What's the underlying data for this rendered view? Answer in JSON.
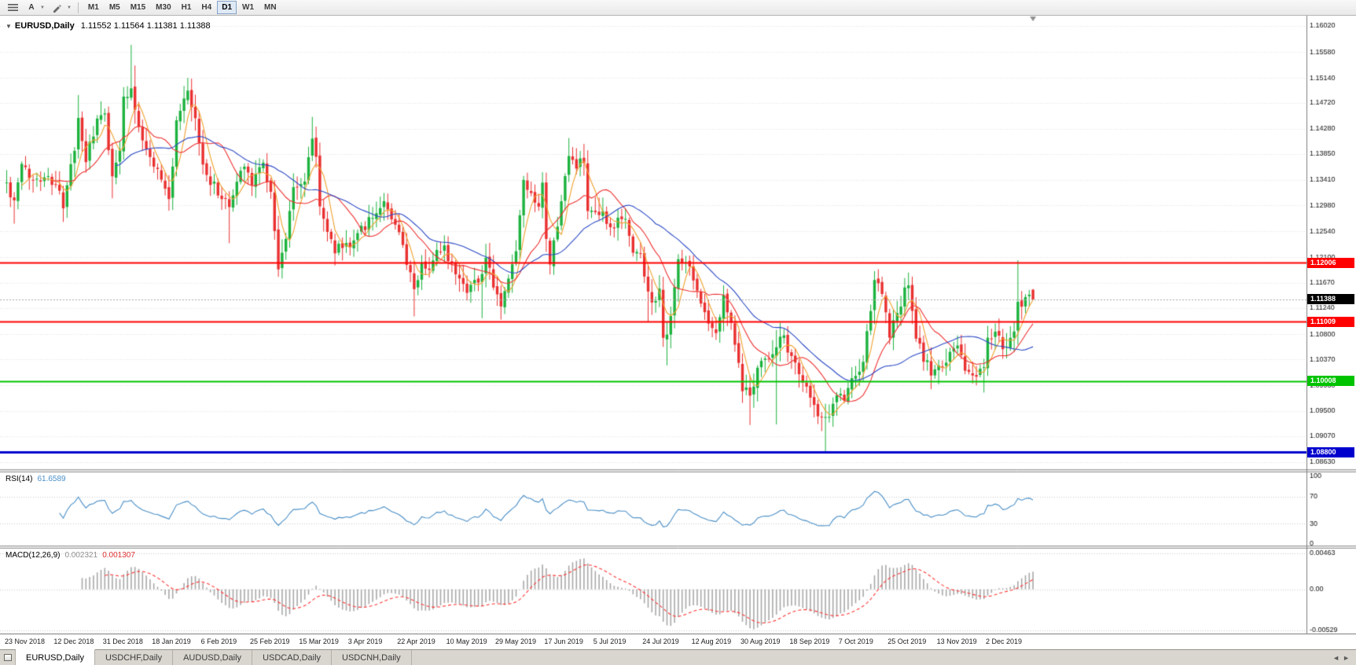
{
  "toolbar": {
    "cursor_button": "A",
    "timeframes": [
      {
        "label": "M1",
        "active": false
      },
      {
        "label": "M5",
        "active": false
      },
      {
        "label": "M15",
        "active": false
      },
      {
        "label": "M30",
        "active": false
      },
      {
        "label": "H1",
        "active": false
      },
      {
        "label": "H4",
        "active": false
      },
      {
        "label": "D1",
        "active": true
      },
      {
        "label": "W1",
        "active": false
      },
      {
        "label": "MN",
        "active": false
      }
    ]
  },
  "chart_header": {
    "collapse_arrow": "▼",
    "symbol": "EURUSD,Daily",
    "ohlc": "1.11552 1.11564 1.11381 1.11388"
  },
  "price_axis": [
    "1.16020",
    "1.15580",
    "1.15140",
    "1.14720",
    "1.14280",
    "1.13850",
    "1.13410",
    "1.12980",
    "1.12540",
    "1.12100",
    "1.11670",
    "1.11240",
    "1.10800",
    "1.10370",
    "1.09930",
    "1.09500",
    "1.09070",
    "1.08630"
  ],
  "time_axis": [
    "23 Nov 2018",
    "12 Dec 2018",
    "31 Dec 2018",
    "18 Jan 2019",
    "6 Feb 2019",
    "25 Feb 2019",
    "15 Mar 2019",
    "3 Apr 2019",
    "22 Apr 2019",
    "10 May 2019",
    "29 May 2019",
    "17 Jun 2019",
    "5 Jul 2019",
    "24 Jul 2019",
    "12 Aug 2019",
    "30 Aug 2019",
    "18 Sep 2019",
    "7 Oct 2019",
    "25 Oct 2019",
    "13 Nov 2019",
    "2 Dec 2019"
  ],
  "rsi_panel": {
    "name": "RSI(14)",
    "value": "61.6589",
    "axis": [
      "100",
      "70",
      "30",
      "0"
    ]
  },
  "macd_panel": {
    "name": "MACD(12,26,9)",
    "value_main": "0.002321",
    "value_signal": "0.001307",
    "axis": [
      "0.00463",
      "0.00",
      "-0.00529"
    ]
  },
  "tabs": [
    {
      "label": "EURUSD,Daily",
      "active": true
    },
    {
      "label": "USDCHF,Daily",
      "active": false
    },
    {
      "label": "AUDUSD,Daily",
      "active": false
    },
    {
      "label": "USDCAD,Daily",
      "active": false
    },
    {
      "label": "USDCNH,Daily",
      "active": false
    }
  ],
  "tab_scroll": {
    "left": "◄",
    "right": "►"
  },
  "chart_data": {
    "type": "candlestick",
    "symbol": "EURUSD",
    "timeframe": "Daily",
    "current_price": 1.11388,
    "bid_badge": "1.11388",
    "bid_badge_bg": "#000000",
    "last_ohlc": {
      "o": 1.11552,
      "h": 1.11564,
      "l": 1.11381,
      "c": 1.11388
    },
    "candle_count": 273,
    "up_color": "#1cb23e",
    "down_color": "#ea3030",
    "seed": 42,
    "noise": 0.0018,
    "gap_noise": 0.0006,
    "wick_min": 0.0004,
    "wick_rand": 0.002,
    "x_range": [
      "23 Nov 2018",
      "19 Dec 2019"
    ],
    "y_range": [
      1.0863,
      1.1602
    ],
    "close_anchors": [
      [
        0,
        1.1335
      ],
      [
        2,
        1.13
      ],
      [
        4,
        1.1365
      ],
      [
        7,
        1.134
      ],
      [
        10,
        1.135
      ],
      [
        13,
        1.133
      ],
      [
        15,
        1.13
      ],
      [
        18,
        1.139
      ],
      [
        19,
        1.1445
      ],
      [
        21,
        1.1375
      ],
      [
        24,
        1.144
      ],
      [
        26,
        1.145
      ],
      [
        28,
        1.1345
      ],
      [
        30,
        1.14
      ],
      [
        31,
        1.1475
      ],
      [
        33,
        1.15
      ],
      [
        34,
        1.1465
      ],
      [
        36,
        1.141
      ],
      [
        38,
        1.138
      ],
      [
        41,
        1.1345
      ],
      [
        43,
        1.1305
      ],
      [
        45,
        1.1435
      ],
      [
        48,
        1.1488
      ],
      [
        50,
        1.144
      ],
      [
        52,
        1.1364
      ],
      [
        55,
        1.133
      ],
      [
        59,
        1.1295
      ],
      [
        61,
        1.1338
      ],
      [
        63,
        1.137
      ],
      [
        65,
        1.134
      ],
      [
        68,
        1.137
      ],
      [
        70,
        1.132
      ],
      [
        72,
        1.1195
      ],
      [
        74,
        1.124
      ],
      [
        76,
        1.1328
      ],
      [
        79,
        1.134
      ],
      [
        81,
        1.1415
      ],
      [
        82,
        1.1378
      ],
      [
        83,
        1.1302
      ],
      [
        85,
        1.125
      ],
      [
        87,
        1.1224
      ],
      [
        89,
        1.123
      ],
      [
        91,
        1.1234
      ],
      [
        94,
        1.126
      ],
      [
        97,
        1.1274
      ],
      [
        99,
        1.13
      ],
      [
        101,
        1.1297
      ],
      [
        104,
        1.1245
      ],
      [
        108,
        1.1156
      ],
      [
        110,
        1.12
      ],
      [
        112,
        1.1194
      ],
      [
        114,
        1.1216
      ],
      [
        116,
        1.1223
      ],
      [
        118,
        1.12
      ],
      [
        120,
        1.118
      ],
      [
        122,
        1.1158
      ],
      [
        124,
        1.117
      ],
      [
        126,
        1.1182
      ],
      [
        127,
        1.1203
      ],
      [
        129,
        1.1165
      ],
      [
        131,
        1.113
      ],
      [
        133,
        1.117
      ],
      [
        135,
        1.1222
      ],
      [
        137,
        1.1334
      ],
      [
        139,
        1.131
      ],
      [
        141,
        1.129
      ],
      [
        142,
        1.1328
      ],
      [
        143,
        1.124
      ],
      [
        144,
        1.1193
      ],
      [
        146,
        1.127
      ],
      [
        149,
        1.138
      ],
      [
        151,
        1.1367
      ],
      [
        153,
        1.1373
      ],
      [
        154,
        1.1285
      ],
      [
        156,
        1.1278
      ],
      [
        158,
        1.128
      ],
      [
        160,
        1.1253
      ],
      [
        162,
        1.127
      ],
      [
        164,
        1.1276
      ],
      [
        166,
        1.122
      ],
      [
        168,
        1.1213
      ],
      [
        170,
        1.115
      ],
      [
        172,
        1.1128
      ],
      [
        173,
        1.1155
      ],
      [
        174,
        1.1076
      ],
      [
        175,
        1.1085
      ],
      [
        176,
        1.111
      ],
      [
        177,
        1.1159
      ],
      [
        178,
        1.12
      ],
      [
        180,
        1.1205
      ],
      [
        182,
        1.1171
      ],
      [
        184,
        1.114
      ],
      [
        186,
        1.11
      ],
      [
        188,
        1.1086
      ],
      [
        190,
        1.1145
      ],
      [
        192,
        1.11
      ],
      [
        194,
        1.104
      ],
      [
        195,
        1.099
      ],
      [
        197,
        1.0972
      ],
      [
        199,
        1.1028
      ],
      [
        201,
        1.1035
      ],
      [
        203,
        1.105
      ],
      [
        204,
        1.1063
      ],
      [
        206,
        1.1073
      ],
      [
        208,
        1.104
      ],
      [
        210,
        1.1017
      ],
      [
        212,
        1.099
      ],
      [
        215,
        1.0941
      ],
      [
        217,
        1.0932
      ],
      [
        219,
        1.0962
      ],
      [
        220,
        1.0979
      ],
      [
        222,
        1.097
      ],
      [
        224,
        1.1
      ],
      [
        227,
        1.103
      ],
      [
        230,
        1.1169
      ],
      [
        232,
        1.115
      ],
      [
        234,
        1.108
      ],
      [
        236,
        1.111
      ],
      [
        238,
        1.1152
      ],
      [
        239,
        1.116
      ],
      [
        241,
        1.1074
      ],
      [
        243,
        1.104
      ],
      [
        245,
        1.1018
      ],
      [
        248,
        1.1021
      ],
      [
        250,
        1.1052
      ],
      [
        252,
        1.1061
      ],
      [
        254,
        1.1021
      ],
      [
        256,
        1.101
      ],
      [
        259,
        1.1018
      ],
      [
        260,
        1.1078
      ],
      [
        262,
        1.108
      ],
      [
        264,
        1.106
      ],
      [
        266,
        1.1065
      ],
      [
        267,
        1.1088
      ],
      [
        268,
        1.113
      ],
      [
        269,
        1.1121
      ],
      [
        270,
        1.1145
      ],
      [
        271,
        1.1152
      ],
      [
        272,
        1.11388
      ]
    ],
    "wick_overrides": {
      "2": {
        "l": 1.1267
      },
      "15": {
        "l": 1.127
      },
      "19": {
        "h": 1.1485
      },
      "28": {
        "l": 1.131
      },
      "33": {
        "h": 1.157
      },
      "34": {
        "h": 1.1535
      },
      "43": {
        "l": 1.1289
      },
      "48": {
        "h": 1.1514
      },
      "59": {
        "l": 1.1234
      },
      "72": {
        "l": 1.1177
      },
      "81": {
        "h": 1.1448
      },
      "108": {
        "l": 1.111
      },
      "126": {
        "l": 1.1107
      },
      "137": {
        "h": 1.1348
      },
      "144": {
        "l": 1.1181
      },
      "149": {
        "h": 1.1412
      },
      "170": {
        "l": 1.1101
      },
      "175": {
        "l": 1.1027
      },
      "197": {
        "l": 1.0926
      },
      "204": {
        "l": 1.0927,
        "h": 1.1087
      },
      "217": {
        "l": 1.0879
      },
      "238": {
        "h": 1.1175
      },
      "259": {
        "l": 1.0981
      },
      "268": {
        "h": 1.1205
      }
    },
    "moving_averages": [
      {
        "period": 5,
        "color": "#f0a22e"
      },
      {
        "period": 13,
        "color": "#f03131"
      },
      {
        "period": 30,
        "color": "#2b49c6"
      }
    ],
    "hlines": [
      {
        "price": 1.12006,
        "label": "1.12006",
        "color": "#ff0000",
        "width": 2
      },
      {
        "price": 1.11009,
        "label": "1.11009",
        "color": "#ff0000",
        "width": 2
      },
      {
        "price": 1.10008,
        "label": "1.10008",
        "color": "#00c300",
        "width": 2
      },
      {
        "price": 1.088,
        "label": "1.08800",
        "color": "#0000cd",
        "width": 3
      }
    ],
    "rsi": {
      "period": 14,
      "value": 61.6589,
      "color": "#4a8fc7",
      "levels": [
        70,
        30
      ],
      "range": [
        0,
        100
      ]
    },
    "macd": {
      "fast": 12,
      "slow": 26,
      "signal_period": 9,
      "value_main": 0.002321,
      "value_signal": 0.001307,
      "hist_color": "#a8a8a8",
      "signal_color": "#ff3434",
      "scale_max": 0.00463,
      "scale_min": -0.00529
    }
  }
}
